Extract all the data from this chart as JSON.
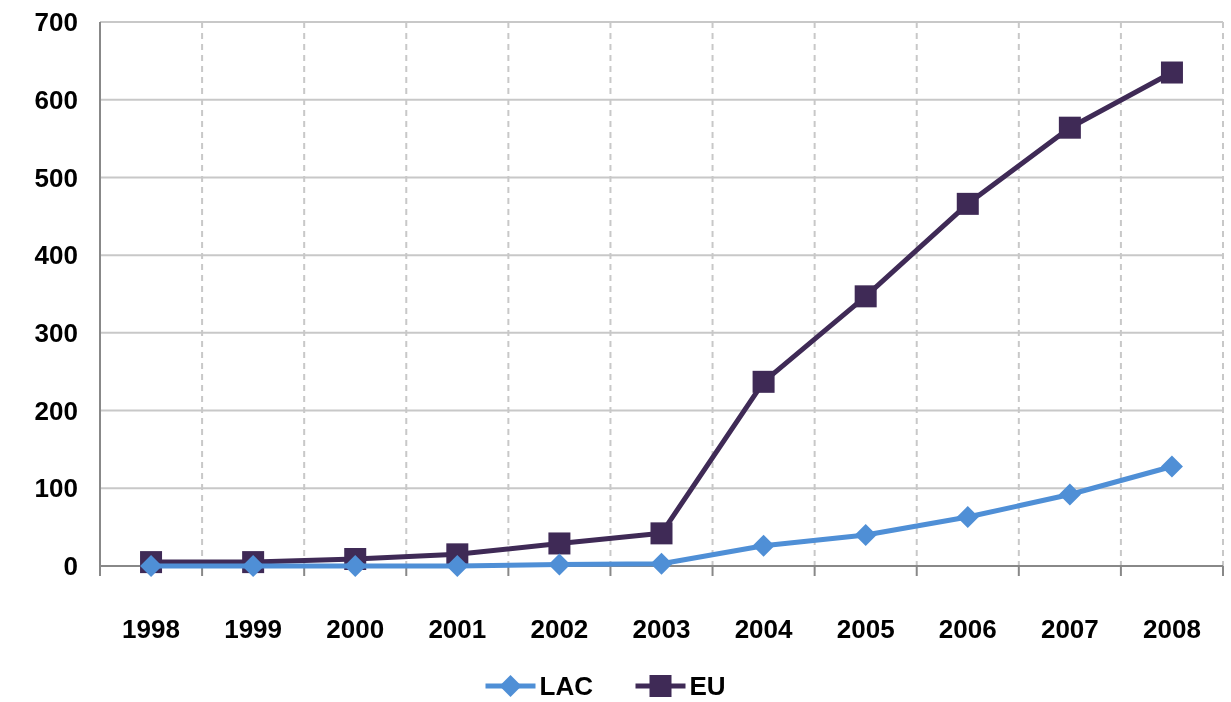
{
  "chart_data": {
    "type": "line",
    "categories": [
      "1998",
      "1999",
      "2000",
      "2001",
      "2002",
      "2003",
      "2004",
      "2005",
      "2006",
      "2007",
      "2008"
    ],
    "series": [
      {
        "name": "LAC",
        "color": "#4f8fd6",
        "marker": "diamond",
        "values": [
          0,
          0,
          0,
          0,
          2,
          3,
          26,
          40,
          63,
          92,
          128
        ]
      },
      {
        "name": "EU",
        "color": "#3f2a56",
        "marker": "square",
        "values": [
          5,
          5,
          9,
          15,
          29,
          42,
          237,
          347,
          466,
          564,
          635
        ]
      }
    ],
    "ylim": [
      0,
      700
    ],
    "yticks": [
      0,
      100,
      200,
      300,
      400,
      500,
      600,
      700
    ],
    "grid": true,
    "legend": "bottom",
    "line_style": "solid"
  }
}
